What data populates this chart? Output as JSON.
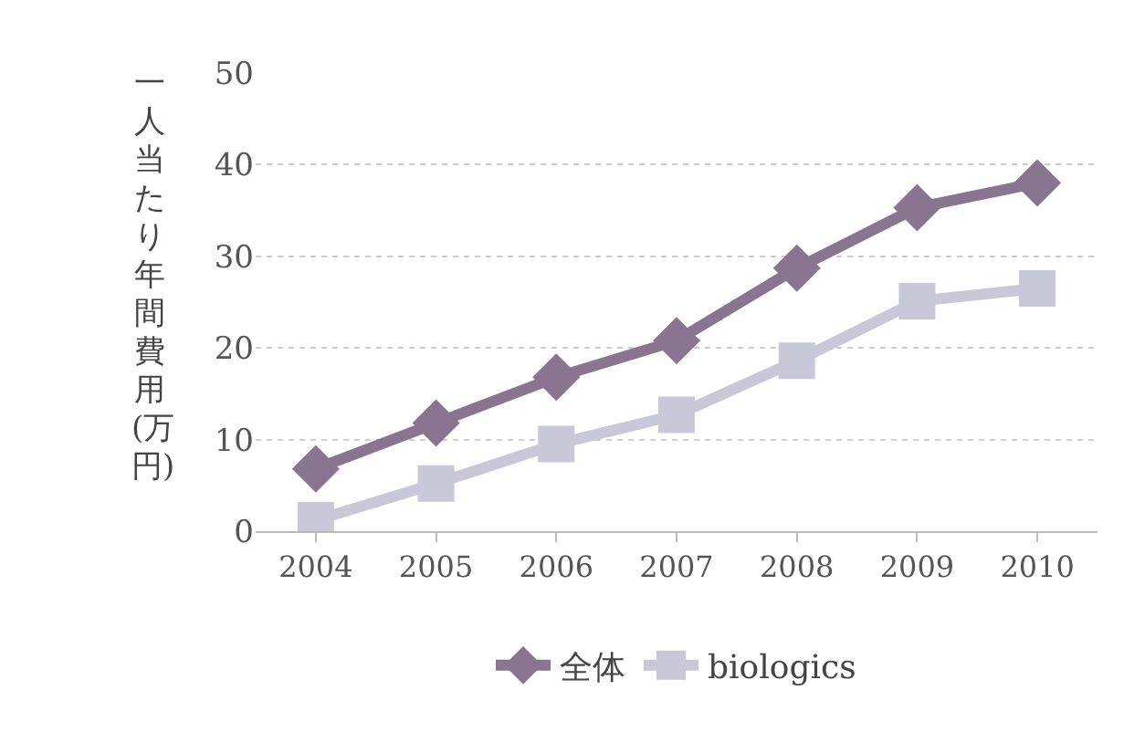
{
  "chart_data": {
    "type": "line",
    "ylabel": "一人当たり年間費用(万円)",
    "categories": [
      "2004",
      "2005",
      "2006",
      "2007",
      "2008",
      "2009",
      "2010"
    ],
    "series": [
      {
        "name": "全体",
        "color": "#8a7590",
        "marker": "diamond",
        "values": [
          6.8,
          11.8,
          16.8,
          20.8,
          28.7,
          35.3,
          38.0
        ]
      },
      {
        "name": "biologics",
        "color": "#c8c8d8",
        "marker": "square",
        "values": [
          1.2,
          5.2,
          9.5,
          12.7,
          18.6,
          25.1,
          26.5
        ]
      }
    ],
    "ylim": [
      0,
      50
    ],
    "yticks": [
      0,
      10,
      20,
      30,
      40,
      50
    ],
    "grid": "y",
    "legend": "bottom",
    "line_style": "solid"
  }
}
